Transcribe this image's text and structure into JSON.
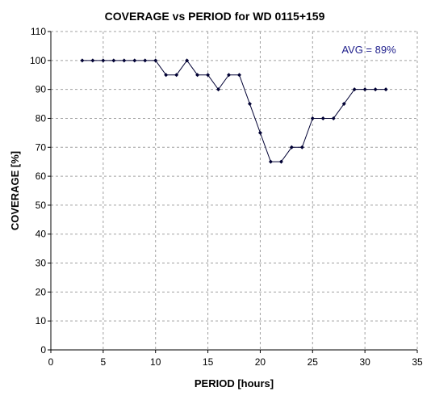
{
  "chart_data": {
    "type": "line",
    "title": "COVERAGE vs PERIOD for WD 0115+159",
    "xlabel": "PERIOD [hours]",
    "ylabel": "COVERAGE [%]",
    "xlim": [
      0,
      35
    ],
    "ylim": [
      0,
      110
    ],
    "xticks": [
      0,
      5,
      10,
      15,
      20,
      25,
      30,
      35
    ],
    "yticks": [
      0,
      10,
      20,
      30,
      40,
      50,
      60,
      70,
      80,
      90,
      100,
      110
    ],
    "grid": true,
    "annotation": "AVG = 89%",
    "annotation_color": "#1f1f8c",
    "series_color": "#000033",
    "x": [
      3,
      4,
      5,
      6,
      7,
      8,
      9,
      10,
      11,
      12,
      13,
      14,
      15,
      16,
      17,
      18,
      19,
      20,
      21,
      22,
      23,
      24,
      25,
      26,
      27,
      28,
      29,
      30,
      31,
      32
    ],
    "y": [
      100,
      100,
      100,
      100,
      100,
      100,
      100,
      100,
      95,
      95,
      100,
      95,
      95,
      90,
      95,
      95,
      85,
      75,
      65,
      65,
      70,
      70,
      80,
      80,
      80,
      85,
      90,
      90,
      90,
      90
    ]
  }
}
